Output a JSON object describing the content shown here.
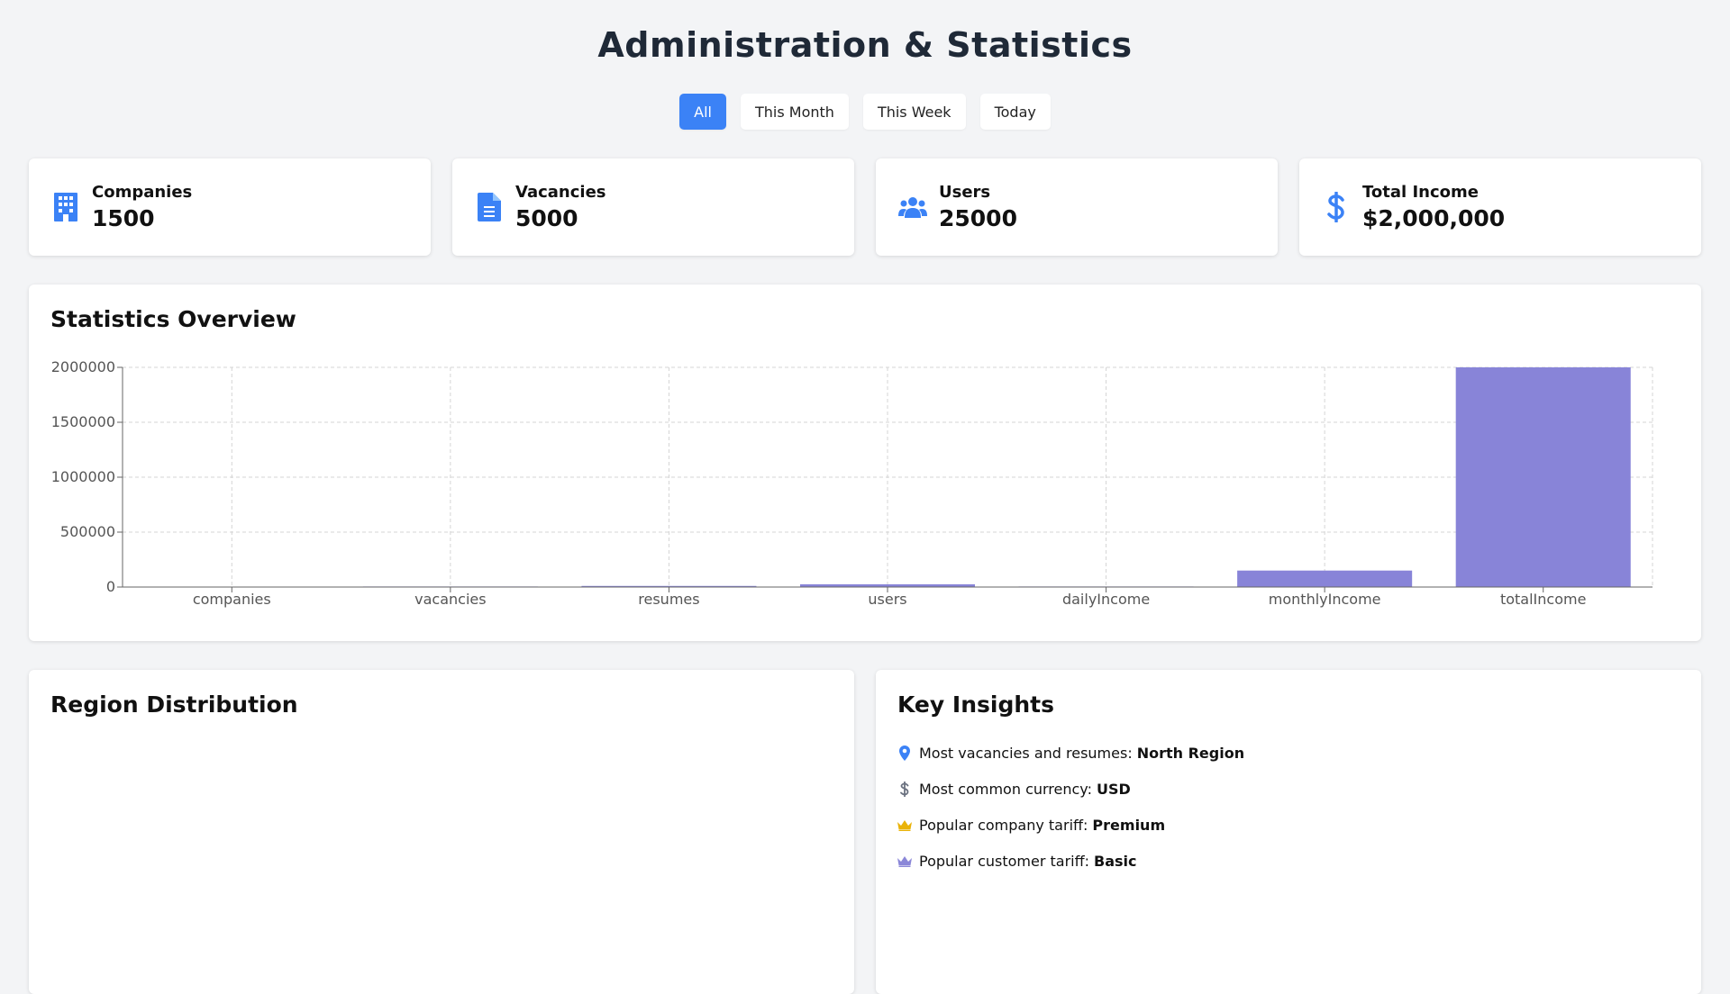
{
  "page": {
    "title": "Administration & Statistics"
  },
  "filters": [
    {
      "label": "All",
      "active": true
    },
    {
      "label": "This Month",
      "active": false
    },
    {
      "label": "This Week",
      "active": false
    },
    {
      "label": "Today",
      "active": false
    }
  ],
  "cards": [
    {
      "label": "Companies",
      "value": "1500",
      "icon": "building-icon"
    },
    {
      "label": "Vacancies",
      "value": "5000",
      "icon": "document-icon"
    },
    {
      "label": "Users",
      "value": "25000",
      "icon": "users-icon"
    },
    {
      "label": "Total Income",
      "value": "$2,000,000",
      "icon": "dollar-icon"
    }
  ],
  "stats_panel": {
    "title": "Statistics Overview"
  },
  "region_panel": {
    "title": "Region Distribution"
  },
  "insights_panel": {
    "title": "Key Insights",
    "items": [
      {
        "text": "Most vacancies and resumes:",
        "value": "North Region",
        "icon": "map-pin-icon",
        "color": "#3b82f6"
      },
      {
        "text": "Most common currency:",
        "value": "USD",
        "icon": "dollar-icon",
        "color": "#6b7280"
      },
      {
        "text": "Popular company tariff:",
        "value": "Premium",
        "icon": "crown-icon",
        "color": "#eab308"
      },
      {
        "text": "Popular customer tariff:",
        "value": "Basic",
        "icon": "crown-icon",
        "color": "#8b87d8"
      }
    ]
  },
  "colors": {
    "accent": "#3b82f6",
    "bar": "#8884d8"
  },
  "chart_data": {
    "type": "bar",
    "categories": [
      "companies",
      "vacancies",
      "resumes",
      "users",
      "dailyIncome",
      "monthlyIncome",
      "totalIncome"
    ],
    "values": [
      1500,
      5000,
      10000,
      25000,
      5000,
      150000,
      2000000
    ],
    "yticks": [
      "0",
      "500000",
      "1000000",
      "1500000",
      "2000000"
    ],
    "ylim": [
      0,
      2000000
    ],
    "grid": true
  }
}
